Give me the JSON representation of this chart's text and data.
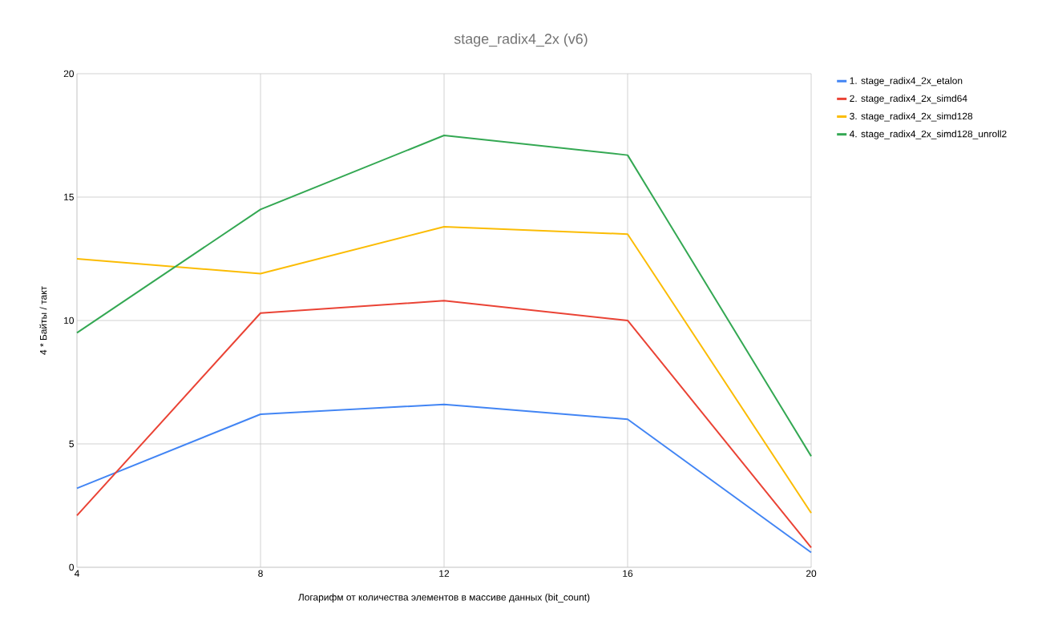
{
  "chart_data": {
    "type": "line",
    "title": "stage_radix4_2x (v6)",
    "xlabel": "Логарифм от количества элементов в массиве данных (bit_count)",
    "ylabel": "4 * Байты / такт",
    "x": [
      4,
      8,
      12,
      16,
      20
    ],
    "xlim": [
      4,
      20
    ],
    "xticks": [
      4,
      8,
      12,
      16,
      20
    ],
    "ylim": [
      0,
      20
    ],
    "yticks": [
      0,
      5,
      10,
      15,
      20
    ],
    "grid": true,
    "legend": "top right",
    "series": [
      {
        "name": "1. stage_radix4_2x_etalon",
        "color": "#4285f4",
        "values": [
          3.2,
          6.2,
          6.6,
          6.0,
          0.6
        ]
      },
      {
        "name": "2. stage_radix4_2x_simd64",
        "color": "#ea4335",
        "values": [
          2.1,
          10.3,
          10.8,
          10.0,
          0.8
        ]
      },
      {
        "name": "3. stage_radix4_2x_simd128",
        "color": "#fbbc04",
        "values": [
          12.5,
          11.9,
          13.8,
          13.5,
          2.2
        ]
      },
      {
        "name": "4. stage_radix4_2x_simd128_unroll2",
        "color": "#34a853",
        "values": [
          9.5,
          14.5,
          17.5,
          16.7,
          4.5
        ]
      }
    ]
  }
}
